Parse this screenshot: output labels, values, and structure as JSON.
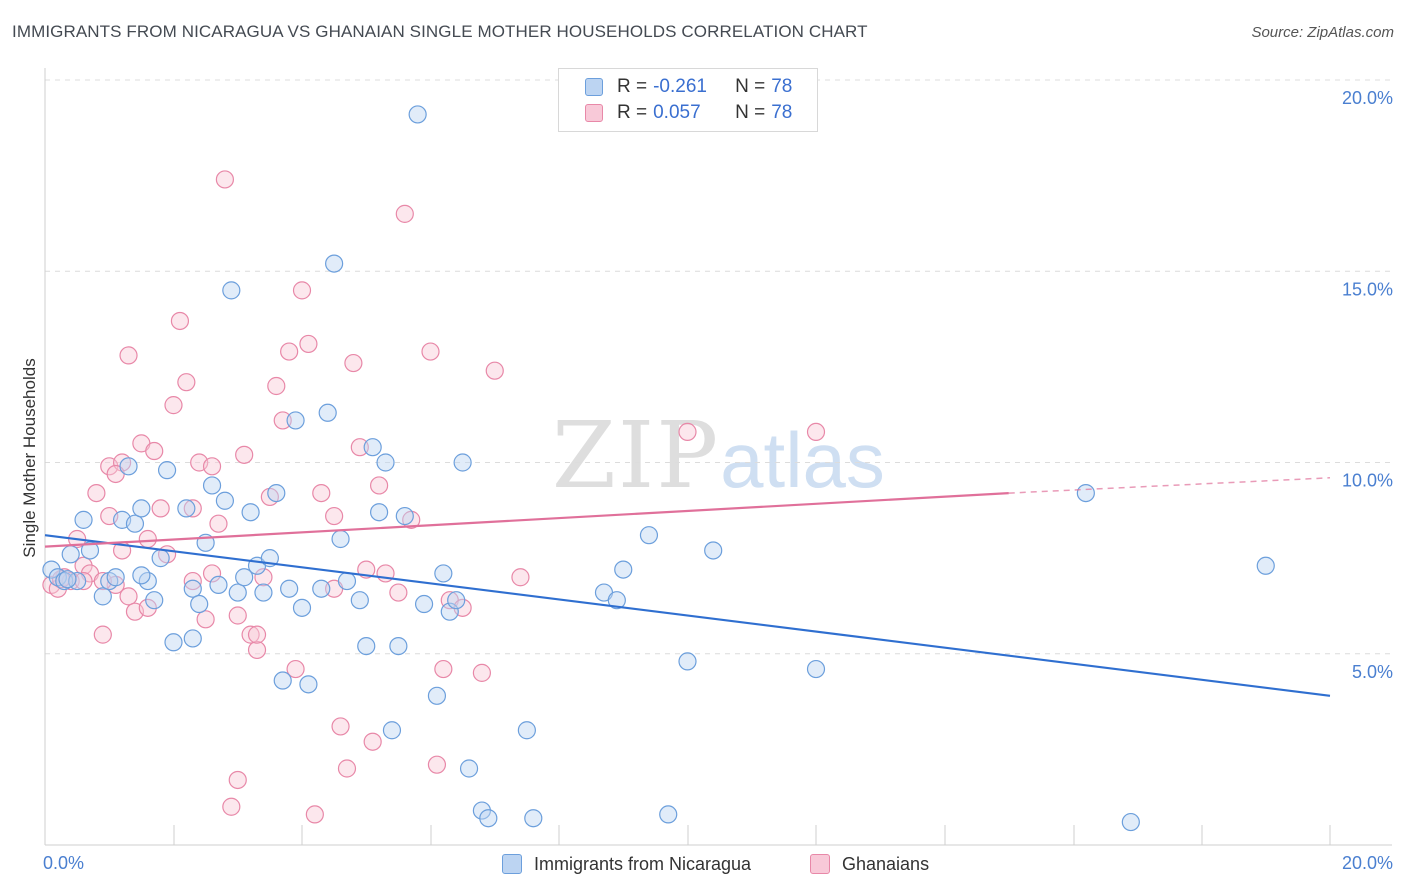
{
  "title": "IMMIGRANTS FROM NICARAGUA VS GHANAIAN SINGLE MOTHER HOUSEHOLDS CORRELATION CHART",
  "source": "Source: ZipAtlas.com",
  "watermark": {
    "zip": "ZIP",
    "atlas": "atlas"
  },
  "legend": {
    "rows": [
      {
        "r_label": "R = ",
        "r_value": "-0.261",
        "n_label": "N = ",
        "n_value": "78"
      },
      {
        "r_label": "R = ",
        "r_value": "0.057",
        "n_label": "N = ",
        "n_value": "78"
      }
    ]
  },
  "colors": {
    "blue_fill": "#bcd4f2",
    "blue_stroke": "#6c9fdc",
    "blue_line": "#2f6fd0",
    "pink_fill": "#f8c9d8",
    "pink_stroke": "#e888a8",
    "pink_line": "#e0709a"
  },
  "chart_data": {
    "type": "scatter",
    "title": "IMMIGRANTS FROM NICARAGUA VS GHANAIAN SINGLE MOTHER HOUSEHOLDS CORRELATION CHART",
    "xlabel": "",
    "ylabel": "Single Mother Households",
    "xlim": [
      0,
      20
    ],
    "ylim": [
      0,
      20
    ],
    "x_tick_labels": [
      "0.0%",
      "20.0%"
    ],
    "y_ticks": [
      {
        "value": 20,
        "label": "20.0%"
      },
      {
        "value": 15,
        "label": "15.0%"
      },
      {
        "value": 10,
        "label": "10.0%"
      },
      {
        "value": 5,
        "label": "5.0%"
      }
    ],
    "grid": true,
    "legend_position": "top-center",
    "series": [
      {
        "name": "Immigrants from Nicaragua",
        "color": "#6c9fdc",
        "trend": {
          "x": [
            0,
            20
          ],
          "y": [
            8.1,
            3.9
          ]
        },
        "points": [
          [
            0.1,
            7.2
          ],
          [
            0.2,
            7.0
          ],
          [
            0.3,
            6.9
          ],
          [
            0.4,
            7.6
          ],
          [
            0.5,
            6.9
          ],
          [
            0.6,
            8.5
          ],
          [
            0.7,
            7.7
          ],
          [
            0.9,
            6.5
          ],
          [
            1.0,
            6.9
          ],
          [
            1.1,
            7.0
          ],
          [
            1.2,
            8.5
          ],
          [
            1.3,
            9.9
          ],
          [
            1.4,
            8.4
          ],
          [
            1.5,
            8.8
          ],
          [
            1.6,
            6.9
          ],
          [
            1.7,
            6.4
          ],
          [
            1.8,
            7.5
          ],
          [
            1.9,
            9.8
          ],
          [
            2.0,
            5.3
          ],
          [
            2.2,
            8.8
          ],
          [
            2.3,
            5.4
          ],
          [
            2.3,
            6.7
          ],
          [
            2.4,
            6.3
          ],
          [
            2.5,
            7.9
          ],
          [
            2.6,
            9.4
          ],
          [
            2.7,
            6.8
          ],
          [
            2.8,
            9.0
          ],
          [
            2.9,
            14.5
          ],
          [
            3.0,
            6.6
          ],
          [
            3.1,
            7.0
          ],
          [
            3.2,
            8.7
          ],
          [
            3.3,
            7.3
          ],
          [
            3.4,
            6.6
          ],
          [
            3.5,
            7.5
          ],
          [
            3.6,
            9.2
          ],
          [
            3.7,
            4.3
          ],
          [
            3.8,
            6.7
          ],
          [
            3.9,
            11.1
          ],
          [
            4.0,
            6.2
          ],
          [
            4.1,
            4.2
          ],
          [
            4.3,
            6.7
          ],
          [
            4.4,
            11.3
          ],
          [
            4.5,
            15.2
          ],
          [
            4.6,
            8.0
          ],
          [
            4.7,
            6.9
          ],
          [
            4.9,
            6.4
          ],
          [
            5.0,
            5.2
          ],
          [
            5.1,
            10.4
          ],
          [
            5.2,
            8.7
          ],
          [
            5.3,
            10.0
          ],
          [
            5.4,
            3.0
          ],
          [
            5.5,
            5.2
          ],
          [
            5.6,
            8.6
          ],
          [
            5.8,
            19.1
          ],
          [
            5.9,
            6.3
          ],
          [
            6.1,
            3.9
          ],
          [
            6.2,
            7.1
          ],
          [
            6.3,
            6.1
          ],
          [
            6.4,
            6.4
          ],
          [
            6.5,
            10.0
          ],
          [
            6.6,
            2.0
          ],
          [
            6.8,
            0.9
          ],
          [
            6.9,
            0.7
          ],
          [
            7.5,
            3.0
          ],
          [
            7.6,
            0.7
          ],
          [
            8.7,
            6.6
          ],
          [
            8.9,
            6.4
          ],
          [
            9.0,
            7.2
          ],
          [
            9.4,
            8.1
          ],
          [
            9.7,
            0.8
          ],
          [
            10.0,
            4.8
          ],
          [
            10.4,
            7.7
          ],
          [
            12.0,
            4.6
          ],
          [
            16.2,
            9.2
          ],
          [
            16.9,
            0.6
          ],
          [
            19.0,
            7.3
          ],
          [
            0.35,
            6.95
          ],
          [
            1.5,
            7.05
          ]
        ]
      },
      {
        "name": "Ghanaians",
        "color": "#e888a8",
        "trend": {
          "x": [
            0,
            15
          ],
          "y": [
            7.8,
            9.2
          ]
        },
        "trend_dashed": {
          "x": [
            15,
            20
          ],
          "y": [
            9.2,
            9.6
          ]
        },
        "points": [
          [
            0.1,
            6.8
          ],
          [
            0.2,
            6.7
          ],
          [
            0.3,
            7.0
          ],
          [
            0.4,
            6.9
          ],
          [
            0.5,
            8.0
          ],
          [
            0.6,
            7.3
          ],
          [
            0.7,
            7.1
          ],
          [
            0.8,
            9.2
          ],
          [
            0.9,
            5.5
          ],
          [
            1.0,
            8.6
          ],
          [
            1.0,
            9.9
          ],
          [
            1.1,
            6.8
          ],
          [
            1.2,
            10.0
          ],
          [
            1.3,
            12.8
          ],
          [
            1.3,
            6.5
          ],
          [
            1.4,
            6.1
          ],
          [
            1.5,
            10.5
          ],
          [
            1.6,
            6.2
          ],
          [
            1.7,
            10.3
          ],
          [
            1.8,
            8.8
          ],
          [
            1.9,
            7.6
          ],
          [
            2.0,
            11.5
          ],
          [
            2.1,
            13.7
          ],
          [
            2.2,
            12.1
          ],
          [
            2.3,
            8.8
          ],
          [
            2.4,
            10.0
          ],
          [
            2.5,
            5.9
          ],
          [
            2.6,
            7.1
          ],
          [
            2.7,
            8.4
          ],
          [
            2.8,
            17.4
          ],
          [
            2.9,
            1.0
          ],
          [
            3.0,
            1.7
          ],
          [
            3.1,
            10.2
          ],
          [
            3.2,
            5.5
          ],
          [
            3.3,
            5.1
          ],
          [
            3.4,
            7.0
          ],
          [
            3.5,
            9.1
          ],
          [
            3.6,
            12.0
          ],
          [
            3.7,
            11.1
          ],
          [
            3.8,
            12.9
          ],
          [
            3.9,
            4.6
          ],
          [
            4.0,
            14.5
          ],
          [
            4.1,
            13.1
          ],
          [
            4.2,
            0.8
          ],
          [
            4.3,
            9.2
          ],
          [
            4.5,
            6.7
          ],
          [
            4.6,
            3.1
          ],
          [
            4.7,
            2.0
          ],
          [
            4.8,
            12.6
          ],
          [
            4.9,
            10.4
          ],
          [
            5.0,
            7.2
          ],
          [
            5.1,
            2.7
          ],
          [
            5.2,
            9.4
          ],
          [
            5.3,
            7.1
          ],
          [
            5.6,
            16.5
          ],
          [
            5.7,
            8.5
          ],
          [
            6.0,
            12.9
          ],
          [
            6.1,
            2.1
          ],
          [
            6.2,
            4.6
          ],
          [
            6.3,
            6.4
          ],
          [
            6.5,
            6.2
          ],
          [
            7.0,
            12.4
          ],
          [
            7.4,
            7.0
          ],
          [
            10.0,
            10.8
          ],
          [
            12.0,
            10.8
          ],
          [
            0.25,
            6.95
          ],
          [
            0.9,
            6.9
          ],
          [
            1.2,
            7.7
          ],
          [
            1.6,
            8.0
          ],
          [
            2.6,
            9.9
          ],
          [
            3.3,
            5.5
          ],
          [
            4.5,
            8.6
          ],
          [
            5.5,
            6.6
          ],
          [
            6.8,
            4.5
          ],
          [
            3.0,
            6.0
          ],
          [
            1.1,
            9.7
          ],
          [
            2.3,
            6.9
          ],
          [
            0.6,
            6.9
          ]
        ]
      }
    ]
  }
}
